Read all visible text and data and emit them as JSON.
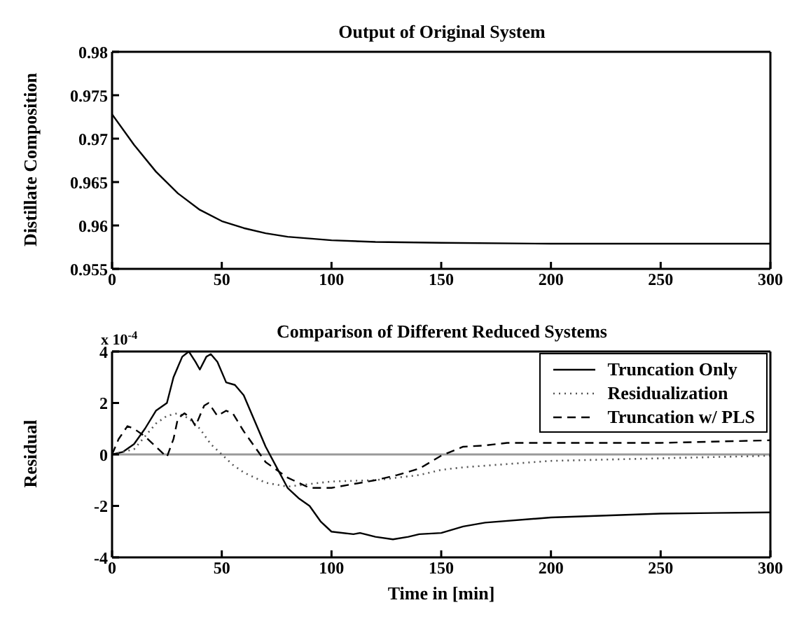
{
  "chart_data": [
    {
      "type": "line",
      "title": "Output of Original System",
      "ylabel": "Distillate Composition",
      "xlim": [
        0,
        300
      ],
      "xticks": [
        0,
        50,
        100,
        150,
        200,
        250,
        300
      ],
      "ylim": [
        0.955,
        0.98
      ],
      "yticks": [
        0.955,
        0.96,
        0.965,
        0.97,
        0.975,
        0.98
      ],
      "legend": false,
      "marker": "none",
      "series": [
        {
          "color": "#000000",
          "line_style": "solid",
          "x": [
            0,
            10,
            20,
            30,
            40,
            50,
            60,
            70,
            80,
            100,
            120,
            150,
            200,
            300
          ],
          "values": [
            0.9728,
            0.9693,
            0.9662,
            0.9637,
            0.9618,
            0.9605,
            0.9597,
            0.9591,
            0.9587,
            0.9583,
            0.9581,
            0.958,
            0.9579,
            0.9579
          ]
        }
      ]
    },
    {
      "type": "line",
      "title": "Comparison of Different Reduced Systems",
      "xlabel": "Time in [min]",
      "ylabel": "Residual",
      "annotations": [
        "x 10$^{-4}$"
      ],
      "xlim": [
        0,
        300
      ],
      "xticks": [
        0,
        50,
        100,
        150,
        200,
        250,
        300
      ],
      "ylim": [
        -4,
        4
      ],
      "yticks": [
        -4,
        -2,
        0,
        2,
        4
      ],
      "legend": "top right",
      "marker": "none",
      "ref_lines": [
        {
          "axis": "y",
          "value": 0,
          "color": "#999999",
          "line_style": "solid"
        }
      ],
      "series": [
        {
          "name": "Truncation Only",
          "color": "#000000",
          "line_style": "solid",
          "x": [
            0,
            5,
            10,
            15,
            20,
            25,
            28,
            32,
            35,
            38,
            40,
            43,
            45,
            48,
            52,
            56,
            60,
            65,
            70,
            75,
            80,
            85,
            90,
            95,
            100,
            110,
            113,
            120,
            128,
            135,
            140,
            150,
            160,
            170,
            200,
            250,
            300
          ],
          "values": [
            0,
            0.1,
            0.4,
            1.0,
            1.7,
            2.0,
            3.0,
            3.8,
            4.0,
            3.6,
            3.3,
            3.8,
            3.9,
            3.6,
            2.8,
            2.7,
            2.3,
            1.3,
            0.3,
            -0.5,
            -1.3,
            -1.7,
            -2.0,
            -2.6,
            -3.0,
            -3.1,
            -3.05,
            -3.2,
            -3.3,
            -3.2,
            -3.1,
            -3.05,
            -2.8,
            -2.65,
            -2.45,
            -2.3,
            -2.25
          ]
        },
        {
          "name": "Residualization",
          "color": "#555555",
          "line_style": "dotted",
          "x": [
            0,
            10,
            15,
            20,
            25,
            30,
            35,
            40,
            45,
            50,
            55,
            60,
            70,
            80,
            90,
            100,
            120,
            140,
            150,
            160,
            200,
            250,
            300
          ],
          "values": [
            0,
            0.2,
            0.7,
            1.2,
            1.5,
            1.6,
            1.4,
            1.0,
            0.4,
            0,
            -0.4,
            -0.7,
            -1.1,
            -1.25,
            -1.15,
            -1.05,
            -1.0,
            -0.8,
            -0.6,
            -0.5,
            -0.25,
            -0.15,
            -0.05
          ]
        },
        {
          "name": "Truncation w/ PLS",
          "color": "#000000",
          "line_style": "dashed",
          "x": [
            0,
            3,
            7,
            10,
            15,
            20,
            25,
            28,
            30,
            33,
            36,
            38,
            42,
            44,
            48,
            52,
            55,
            60,
            65,
            70,
            80,
            90,
            100,
            110,
            120,
            130,
            140,
            150,
            160,
            170,
            180,
            200,
            250,
            300
          ],
          "values": [
            0,
            0.6,
            1.1,
            1.0,
            0.7,
            0.3,
            -0.1,
            0.6,
            1.4,
            1.6,
            1.4,
            1.1,
            1.9,
            2.0,
            1.5,
            1.7,
            1.6,
            0.9,
            0.3,
            -0.3,
            -0.9,
            -1.3,
            -1.3,
            -1.15,
            -1.0,
            -0.8,
            -0.55,
            -0.05,
            0.3,
            0.35,
            0.45,
            0.45,
            0.45,
            0.55
          ]
        }
      ]
    }
  ]
}
